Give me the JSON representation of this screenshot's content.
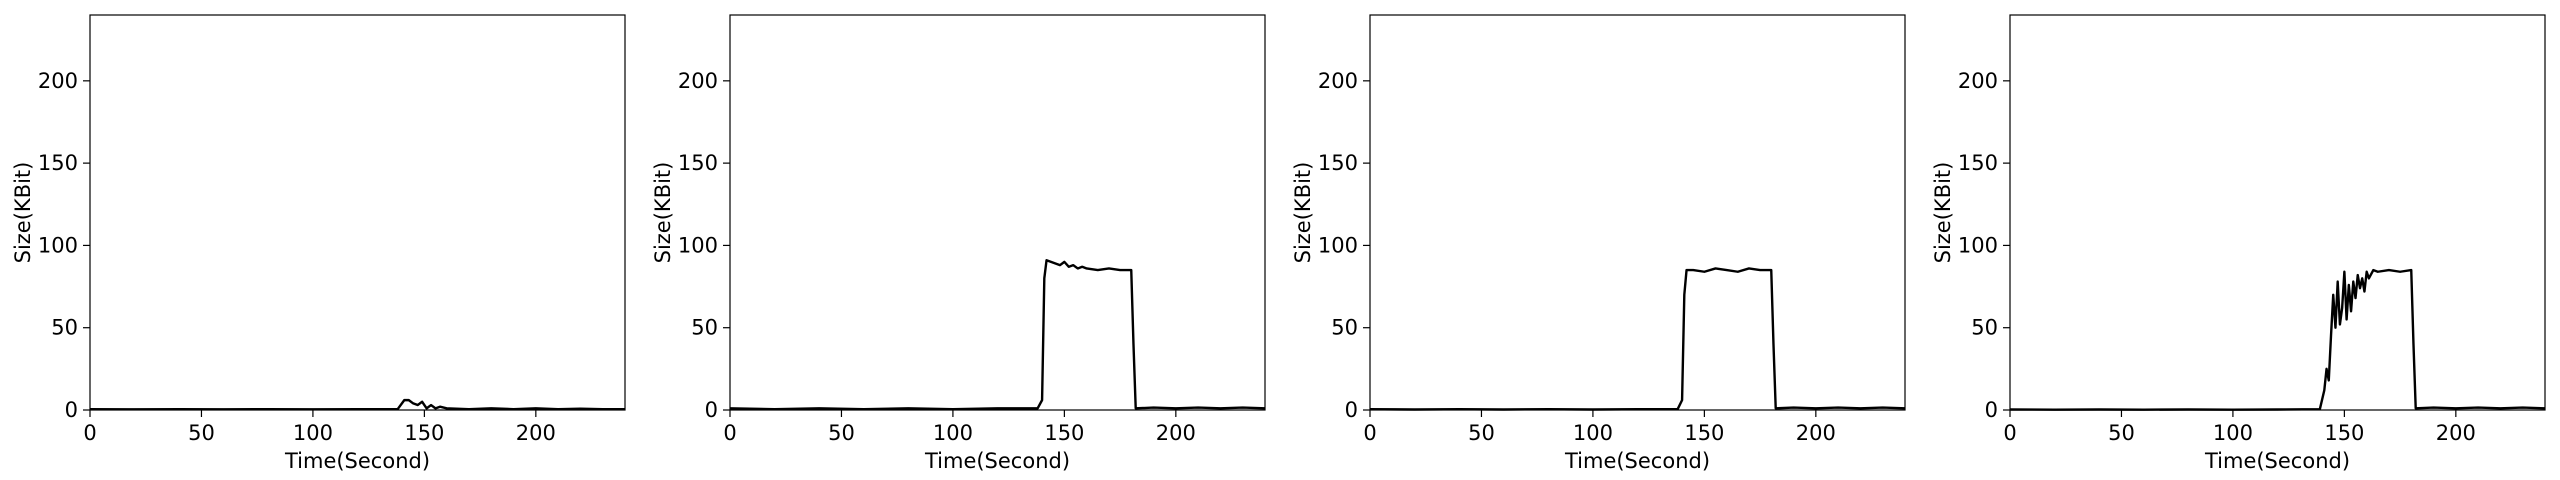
{
  "chart_data": [
    {
      "type": "line",
      "xlabel": "Time(Second)",
      "ylabel": "Size(KBit)",
      "xlim": [
        0,
        240
      ],
      "ylim": [
        0,
        240
      ],
      "xticks": [
        0,
        50,
        100,
        150,
        200
      ],
      "yticks": [
        0,
        50,
        100,
        150,
        200
      ],
      "grid": false,
      "series": [
        {
          "color": "#000000",
          "x": [
            0,
            20,
            40,
            60,
            80,
            100,
            120,
            138,
            141,
            143,
            145,
            147,
            149,
            151,
            153,
            155,
            157,
            160,
            170,
            180,
            190,
            200,
            210,
            220,
            230,
            240
          ],
          "y": [
            0.5,
            0.4,
            0.5,
            0.4,
            0.5,
            0.4,
            0.5,
            0.5,
            6,
            6,
            4,
            3,
            5,
            1,
            3,
            1,
            2,
            1,
            0.5,
            1,
            0.5,
            1,
            0.5,
            0.8,
            0.5,
            0.5
          ]
        }
      ]
    },
    {
      "type": "line",
      "xlabel": "Time(Second)",
      "ylabel": "Size(KBit)",
      "xlim": [
        0,
        240
      ],
      "ylim": [
        0,
        240
      ],
      "xticks": [
        0,
        50,
        100,
        150,
        200
      ],
      "yticks": [
        0,
        50,
        100,
        150,
        200
      ],
      "grid": false,
      "series": [
        {
          "color": "#000000",
          "x": [
            0,
            20,
            40,
            60,
            80,
            100,
            120,
            138,
            140,
            141,
            142,
            144,
            146,
            148,
            150,
            152,
            154,
            156,
            158,
            160,
            165,
            170,
            175,
            180,
            181,
            182,
            190,
            200,
            210,
            220,
            230,
            240
          ],
          "y": [
            1,
            0.5,
            1,
            0.5,
            1,
            0.5,
            1,
            1,
            6,
            80,
            91,
            90,
            89,
            88,
            90,
            87,
            88,
            86,
            87,
            86,
            85,
            86,
            85,
            85,
            40,
            1,
            1.5,
            1,
            1.5,
            1,
            1.5,
            1
          ]
        }
      ]
    },
    {
      "type": "line",
      "xlabel": "Time(Second)",
      "ylabel": "Size(KBit)",
      "xlim": [
        0,
        240
      ],
      "ylim": [
        0,
        240
      ],
      "xticks": [
        0,
        50,
        100,
        150,
        200
      ],
      "yticks": [
        0,
        50,
        100,
        150,
        200
      ],
      "grid": false,
      "series": [
        {
          "color": "#000000",
          "x": [
            0,
            20,
            40,
            60,
            80,
            100,
            120,
            138,
            140,
            141,
            142,
            145,
            150,
            155,
            160,
            165,
            170,
            175,
            180,
            181,
            182,
            190,
            200,
            210,
            220,
            230,
            240
          ],
          "y": [
            0.5,
            0.3,
            0.5,
            0.3,
            0.5,
            0.3,
            0.5,
            0.5,
            6,
            70,
            85,
            85,
            84,
            86,
            85,
            84,
            86,
            85,
            85,
            40,
            1,
            1.5,
            1,
            1.5,
            1,
            1.5,
            1
          ]
        }
      ]
    },
    {
      "type": "line",
      "xlabel": "Time(Second)",
      "ylabel": "Size(KBit)",
      "xlim": [
        0,
        240
      ],
      "ylim": [
        0,
        240
      ],
      "xticks": [
        0,
        50,
        100,
        150,
        200
      ],
      "yticks": [
        0,
        50,
        100,
        150,
        200
      ],
      "grid": false,
      "series": [
        {
          "color": "#000000",
          "x": [
            0,
            20,
            40,
            60,
            80,
            100,
            120,
            139,
            141,
            142,
            143,
            144,
            145,
            146,
            147,
            148,
            149,
            150,
            151,
            152,
            153,
            154,
            155,
            156,
            157,
            158,
            159,
            160,
            161,
            163,
            165,
            170,
            175,
            180,
            181,
            182,
            190,
            200,
            210,
            220,
            230,
            240
          ],
          "y": [
            0.3,
            0.2,
            0.3,
            0.2,
            0.3,
            0.2,
            0.3,
            0.5,
            12,
            25,
            18,
            45,
            70,
            50,
            78,
            52,
            62,
            84,
            55,
            76,
            60,
            78,
            68,
            82,
            74,
            80,
            72,
            84,
            80,
            85,
            84,
            85,
            84,
            85,
            40,
            1,
            1.5,
            1,
            1.5,
            1,
            1.5,
            1
          ]
        }
      ]
    }
  ]
}
